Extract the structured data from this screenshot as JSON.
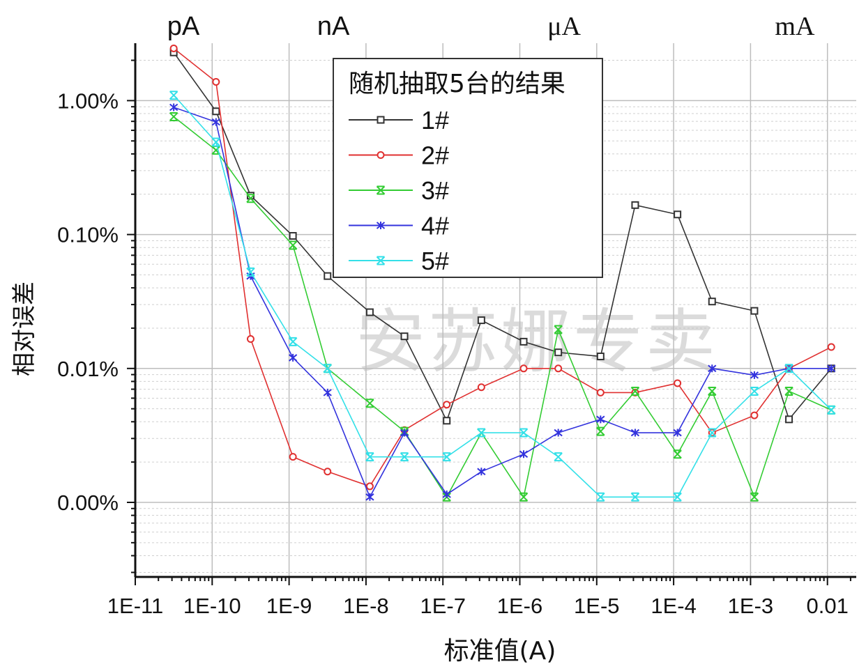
{
  "chart_data": {
    "type": "line",
    "title": "",
    "xlabel": "标准值(A)",
    "ylabel": "相对误差",
    "x_scale": "log",
    "x_range_exp": [
      -11,
      -1.65
    ],
    "x_ticks": [
      {
        "exp": -11,
        "label": "1E-11"
      },
      {
        "exp": -10,
        "label": "1E-10"
      },
      {
        "exp": -9,
        "label": "1E-9"
      },
      {
        "exp": -8,
        "label": "1E-8"
      },
      {
        "exp": -7,
        "label": "1E-7"
      },
      {
        "exp": -6,
        "label": "1E-6"
      },
      {
        "exp": -5,
        "label": "1E-5"
      },
      {
        "exp": -4,
        "label": "1E-4"
      },
      {
        "exp": -3,
        "label": "1E-3"
      },
      {
        "exp": -2,
        "label": "0.01"
      }
    ],
    "y_ticks": [
      {
        "level": 3,
        "label": "1.00%"
      },
      {
        "level": 2,
        "label": "0.10%"
      },
      {
        "level": 1,
        "label": "0.01%"
      },
      {
        "level": 0,
        "label": "0.00%"
      }
    ],
    "y_range_level": [
      -0.55,
      3.42
    ],
    "unit_labels": [
      {
        "exp": -10.9,
        "label": "pA"
      },
      {
        "exp": -8.95,
        "label": "nA"
      },
      {
        "exp": -5.95,
        "label": "μA"
      },
      {
        "exp": -2.95,
        "label": "mA"
      }
    ],
    "legend": {
      "title": "随机抽取5台的结果",
      "position": "top-center"
    },
    "watermark": "安苏娜专卖",
    "x_exponents": [
      -10.5,
      -9.95,
      -9.5,
      -8.95,
      -8.5,
      -7.95,
      -7.5,
      -6.95,
      -6.5,
      -5.95,
      -5.5,
      -4.95,
      -4.5,
      -3.95,
      -3.5,
      -2.95,
      -2.5,
      -1.95
    ],
    "series": [
      {
        "name": "1#",
        "color": "#333333",
        "marker": "square",
        "values": [
          3.36,
          2.92,
          2.29,
          1.99,
          1.69,
          1.42,
          1.24,
          0.61,
          1.36,
          1.2,
          1.12,
          1.09,
          2.22,
          2.15,
          1.5,
          1.43,
          0.62,
          1.0
        ]
      },
      {
        "name": "2#",
        "color": "#e03030",
        "marker": "circle",
        "values": [
          3.39,
          3.14,
          1.22,
          0.34,
          0.23,
          0.12,
          0.54,
          0.73,
          0.86,
          1.0,
          1.0,
          0.82,
          0.82,
          0.89,
          0.52,
          0.65,
          1.0,
          1.16
        ]
      },
      {
        "name": "3#",
        "color": "#33cc33",
        "marker": "x",
        "values": [
          2.88,
          2.63,
          2.27,
          1.92,
          1.0,
          0.74,
          0.53,
          0.04,
          0.52,
          0.04,
          1.29,
          0.53,
          0.83,
          0.36,
          0.83,
          0.04,
          0.83,
          0.69
        ]
      },
      {
        "name": "4#",
        "color": "#3333dd",
        "marker": "star",
        "values": [
          2.95,
          2.84,
          1.69,
          1.08,
          0.82,
          0.04,
          0.52,
          0.06,
          0.23,
          0.36,
          0.52,
          0.62,
          0.52,
          0.52,
          1.0,
          0.95,
          1.0,
          1.0
        ]
      },
      {
        "name": "5#",
        "color": "#33e0e8",
        "marker": "x",
        "values": [
          3.04,
          2.69,
          1.72,
          1.2,
          1.0,
          0.34,
          0.34,
          0.34,
          0.52,
          0.52,
          0.34,
          0.04,
          0.04,
          0.04,
          0.52,
          0.83,
          1.0,
          0.69
        ]
      }
    ]
  }
}
